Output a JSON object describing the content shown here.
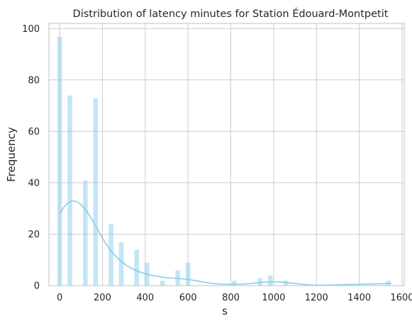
{
  "chart_data": {
    "type": "histogram",
    "title": "Distribution of latency minutes for Station Édouard-Montpetit",
    "xlabel": "s",
    "ylabel": "Frequency",
    "xlim": [
      -50,
      1610
    ],
    "ylim": [
      0,
      102
    ],
    "xticks": [
      0,
      200,
      400,
      600,
      800,
      1000,
      1200,
      1400,
      1600
    ],
    "yticks": [
      0,
      20,
      40,
      60,
      80,
      100
    ],
    "grid": true,
    "bar_color": "#87CEEB",
    "kde_color": "#87CEEB",
    "bin_width": 24,
    "bins": [
      {
        "x": 0,
        "count": 97
      },
      {
        "x": 48,
        "count": 74
      },
      {
        "x": 120,
        "count": 41
      },
      {
        "x": 168,
        "count": 73
      },
      {
        "x": 240,
        "count": 24
      },
      {
        "x": 288,
        "count": 17
      },
      {
        "x": 360,
        "count": 14
      },
      {
        "x": 408,
        "count": 9
      },
      {
        "x": 480,
        "count": 2
      },
      {
        "x": 552,
        "count": 6
      },
      {
        "x": 600,
        "count": 9
      },
      {
        "x": 816,
        "count": 2
      },
      {
        "x": 936,
        "count": 3
      },
      {
        "x": 984,
        "count": 4
      },
      {
        "x": 1056,
        "count": 2
      },
      {
        "x": 1536,
        "count": 2
      }
    ],
    "kde": {
      "x": [
        0,
        25,
        50,
        75,
        100,
        130,
        160,
        200,
        240,
        280,
        320,
        360,
        400,
        450,
        500,
        550,
        600,
        650,
        700,
        750,
        800,
        850,
        900,
        950,
        1000,
        1050,
        1100,
        1150,
        1200,
        1250,
        1300,
        1350,
        1400,
        1450,
        1500,
        1550
      ],
      "y": [
        28,
        31,
        32.7,
        32.8,
        31.5,
        28.5,
        24.5,
        18.5,
        13.5,
        10,
        7.5,
        5.8,
        4.6,
        3.7,
        3.1,
        2.8,
        2.4,
        1.7,
        1.0,
        0.6,
        0.5,
        0.6,
        0.9,
        1.3,
        1.5,
        1.3,
        0.8,
        0.4,
        0.2,
        0.2,
        0.3,
        0.4,
        0.5,
        0.6,
        0.7,
        0.8
      ]
    }
  }
}
